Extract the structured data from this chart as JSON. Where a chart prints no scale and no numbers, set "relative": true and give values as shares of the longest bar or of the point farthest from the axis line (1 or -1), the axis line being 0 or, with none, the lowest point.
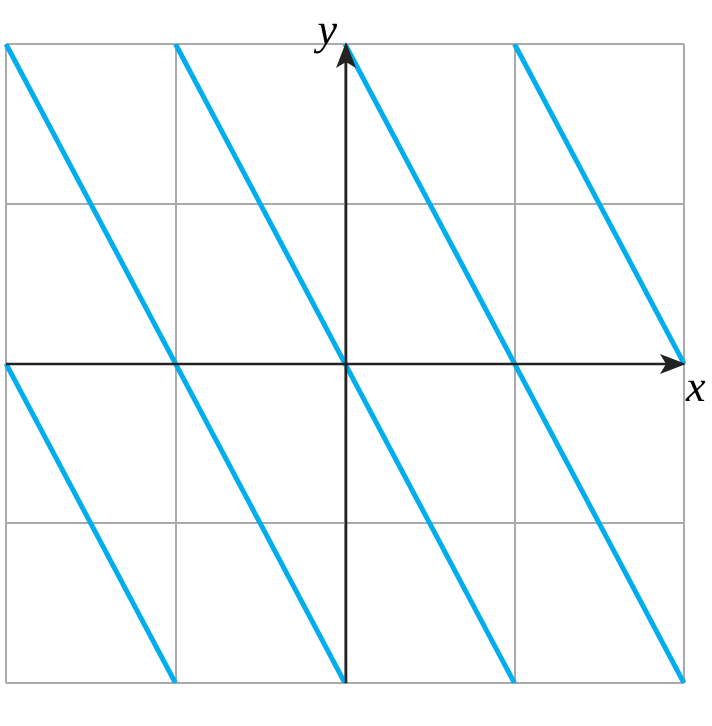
{
  "chart_data": {
    "type": "line",
    "xlabel": "x",
    "ylabel": "y",
    "relative": true,
    "grid": true,
    "legend": false,
    "marker": "none",
    "line_style": "solid",
    "categories": [
      null,
      null,
      null,
      null,
      null,
      null,
      null,
      null,
      null
    ],
    "series": [
      {
        "color": "#00aeef",
        "values": [
          1,
          0.5,
          0,
          -0.5,
          -1,
          null,
          null,
          null,
          null
        ]
      },
      {
        "color": "#00aeef",
        "values": [
          null,
          null,
          1,
          0.5,
          0,
          -0.5,
          -1,
          null,
          null
        ]
      },
      {
        "color": "#00aeef",
        "values": [
          null,
          null,
          null,
          null,
          1,
          0.5,
          0,
          -0.5,
          -1
        ]
      },
      {
        "color": "#00aeef",
        "values": [
          null,
          null,
          null,
          null,
          null,
          null,
          1,
          0.5,
          0
        ]
      },
      {
        "color": "#00aeef",
        "values": [
          0,
          -0.5,
          -1,
          null,
          null,
          null,
          null,
          null,
          null
        ]
      }
    ]
  }
}
